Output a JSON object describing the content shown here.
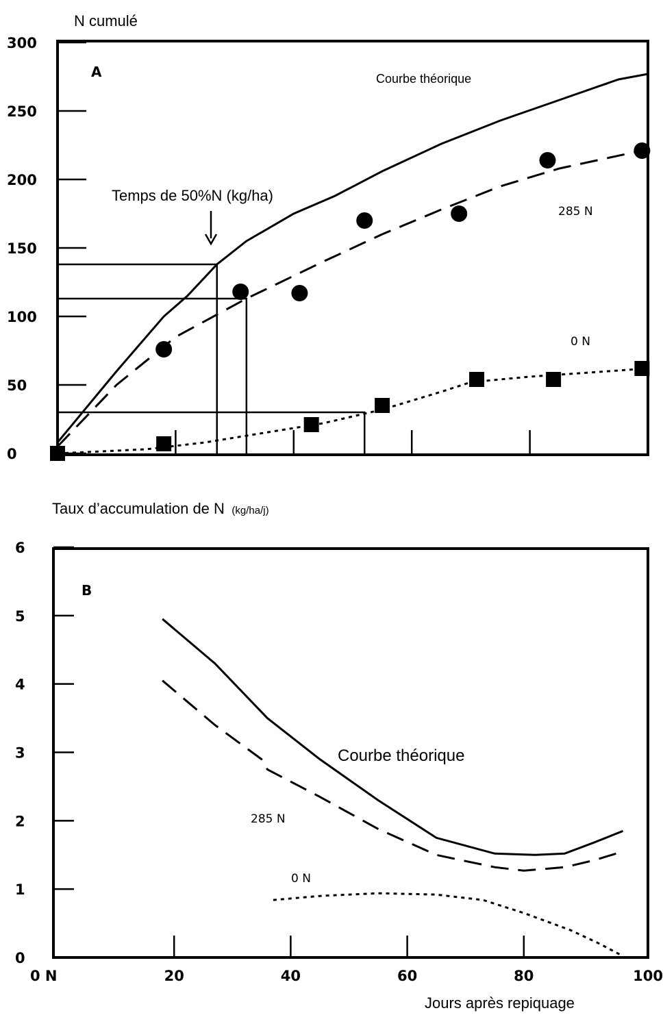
{
  "chart_data": [
    {
      "panel": "A",
      "type": "line",
      "ylabel": "N cumulé",
      "yticks": [
        "0",
        "50",
        "100",
        "150",
        "200",
        "250",
        "300"
      ],
      "ylim": [
        0,
        300
      ],
      "xlim": [
        0,
        100
      ],
      "grid": false,
      "annotations": {
        "panel_letter": "A",
        "theoretical_label": "Courbe théorique",
        "time_label": "Temps de 50%N (kg/ha)",
        "label_285": "285 N",
        "label_0": "0 N"
      },
      "series": [
        {
          "name": "Courbe théorique",
          "style": "solid",
          "points": [
            [
              0,
              8
            ],
            [
              10,
              60
            ],
            [
              18,
              100
            ],
            [
              22,
              115
            ],
            [
              27,
              138
            ],
            [
              32,
              155
            ],
            [
              40,
              175
            ],
            [
              47,
              188
            ],
            [
              55,
              206
            ],
            [
              65,
              226
            ],
            [
              75,
              243
            ],
            [
              85,
              258
            ],
            [
              95,
              273
            ],
            [
              100,
              277
            ]
          ]
        },
        {
          "name": "285 N",
          "style": "dashed",
          "points": [
            [
              0,
              5
            ],
            [
              10,
              50
            ],
            [
              20,
              85
            ],
            [
              32,
              113
            ],
            [
              45,
              140
            ],
            [
              55,
              160
            ],
            [
              65,
              178
            ],
            [
              75,
              195
            ],
            [
              85,
              208
            ],
            [
              100,
              222
            ]
          ]
        },
        {
          "name": "285 N",
          "style": "markers-circle",
          "points": [
            [
              18,
              76
            ],
            [
              31,
              118
            ],
            [
              41,
              117
            ],
            [
              52,
              170
            ],
            [
              68,
              175
            ],
            [
              83,
              214
            ],
            [
              99,
              221
            ]
          ]
        },
        {
          "name": "0 N",
          "style": "dotted",
          "points": [
            [
              0,
              0
            ],
            [
              15,
              3
            ],
            [
              25,
              8
            ],
            [
              35,
              15
            ],
            [
              45,
              22
            ],
            [
              55,
              32
            ],
            [
              65,
              45
            ],
            [
              70,
              52
            ],
            [
              80,
              56
            ],
            [
              90,
              59
            ],
            [
              100,
              62
            ]
          ]
        },
        {
          "name": "0 N",
          "style": "markers-square",
          "points": [
            [
              0,
              0
            ],
            [
              18,
              7
            ],
            [
              43,
              21
            ],
            [
              55,
              35
            ],
            [
              71,
              54
            ],
            [
              84,
              54
            ],
            [
              99,
              62
            ]
          ]
        }
      ],
      "reference_lines": {
        "theoretical_50pct": {
          "x": 27,
          "y": 138
        },
        "n285_50pct": {
          "x": 32,
          "y": 113
        },
        "n0_50pct": {
          "x": 52,
          "y": 30
        }
      }
    },
    {
      "panel": "B",
      "type": "line",
      "ylabel": "Taux d’accumulation de N",
      "ylabel_unit": "(kg/ha/j)",
      "xlabel": "Jours après repiquage",
      "xticks": [
        "0 N",
        "20",
        "40",
        "60",
        "80",
        "100"
      ],
      "yticks": [
        "0",
        "1",
        "2",
        "3",
        "4",
        "5",
        "6"
      ],
      "xlim": [
        0,
        100
      ],
      "ylim": [
        0,
        6
      ],
      "grid": false,
      "annotations": {
        "panel_letter": "B",
        "theoretical_label": "Courbe théorique",
        "label_285": "285 N",
        "label_0": "0 N"
      },
      "series": [
        {
          "name": "Courbe théorique",
          "style": "solid",
          "points": [
            [
              18,
              4.95
            ],
            [
              27,
              4.3
            ],
            [
              36,
              3.5
            ],
            [
              45,
              2.9
            ],
            [
              55,
              2.3
            ],
            [
              65,
              1.75
            ],
            [
              75,
              1.52
            ],
            [
              82,
              1.5
            ],
            [
              87,
              1.52
            ],
            [
              92,
              1.68
            ],
            [
              97,
              1.85
            ]
          ]
        },
        {
          "name": "285 N",
          "style": "dashed",
          "points": [
            [
              18,
              4.05
            ],
            [
              27,
              3.4
            ],
            [
              35,
              2.9
            ],
            [
              36,
              2.75
            ],
            [
              45,
              2.35
            ],
            [
              55,
              1.88
            ],
            [
              65,
              1.5
            ],
            [
              75,
              1.32
            ],
            [
              80,
              1.27
            ],
            [
              87,
              1.32
            ],
            [
              92,
              1.42
            ],
            [
              97,
              1.55
            ]
          ]
        },
        {
          "name": "0 N",
          "style": "dotted",
          "points": [
            [
              37,
              0.84
            ],
            [
              45,
              0.9
            ],
            [
              55,
              0.94
            ],
            [
              65,
              0.92
            ],
            [
              73,
              0.84
            ],
            [
              80,
              0.65
            ],
            [
              88,
              0.4
            ],
            [
              93,
              0.2
            ],
            [
              97,
              0.02
            ]
          ]
        }
      ]
    }
  ]
}
